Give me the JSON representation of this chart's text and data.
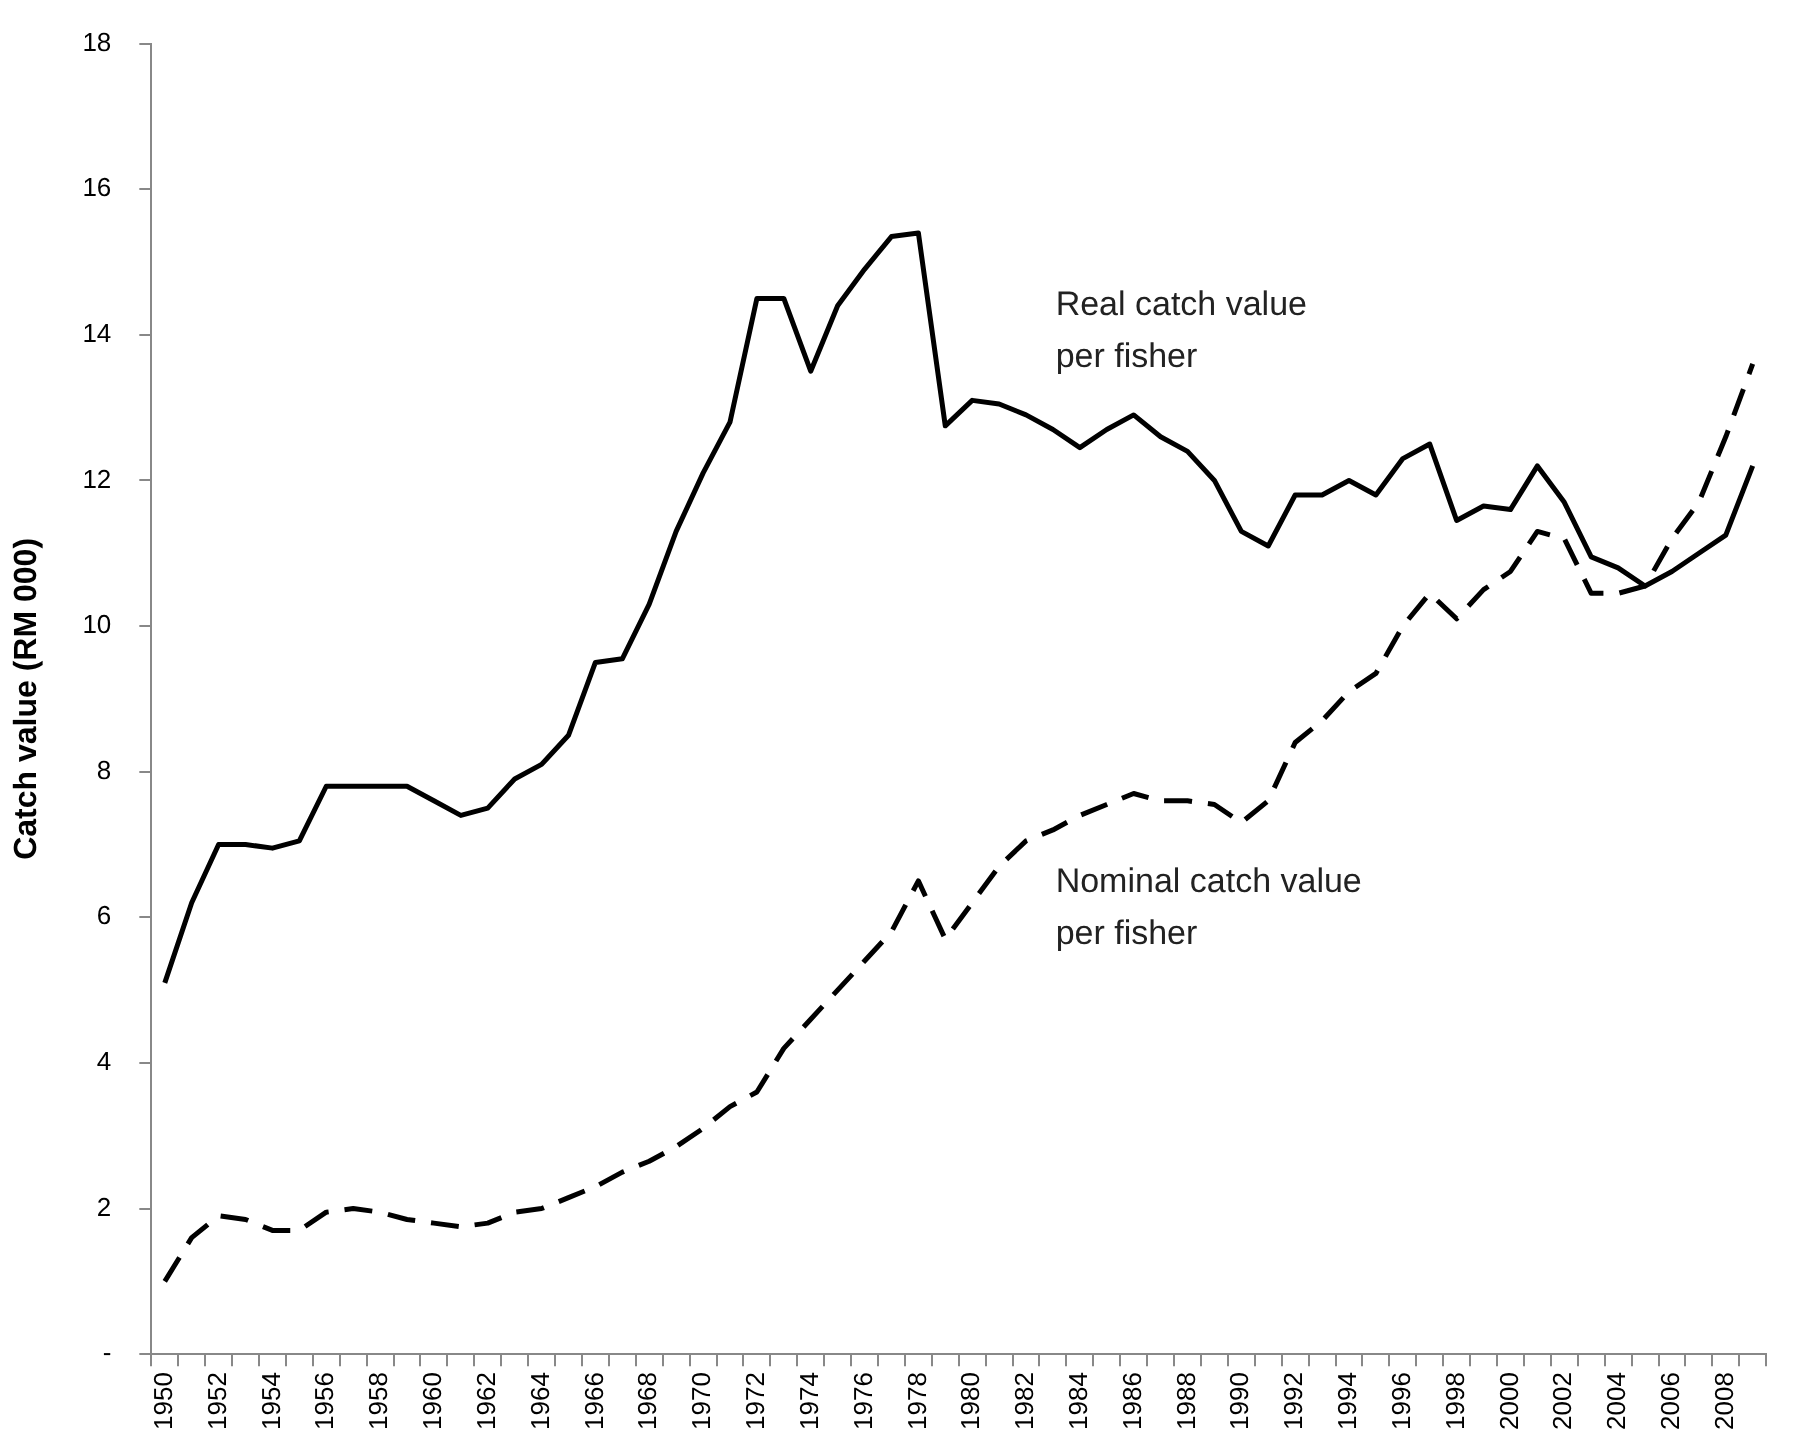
{
  "chart_data": {
    "type": "line",
    "ylabel": "Catch value (RM 000)",
    "categories": [
      "1950",
      null,
      "1952",
      null,
      "1954",
      null,
      "1956",
      null,
      "1958",
      null,
      "1960",
      null,
      "1962",
      null,
      "1964",
      null,
      "1966",
      null,
      "1968",
      null,
      "1970",
      null,
      "1972",
      null,
      "1974",
      null,
      "1976",
      null,
      "1978",
      null,
      "1980",
      null,
      "1982",
      null,
      "1984",
      null,
      "1986",
      null,
      "1988",
      null,
      "1990",
      null,
      "1992",
      null,
      "1994",
      null,
      "1996",
      null,
      "1998",
      null,
      "2000",
      null,
      "2002",
      null,
      "2004",
      null,
      "2006",
      null,
      "2008",
      null
    ],
    "series": [
      {
        "name": "Real catch value per fisher",
        "color": "#000000",
        "line_style": "solid",
        "values": [
          5.1,
          6.2,
          7.0,
          7.0,
          6.95,
          7.05,
          7.8,
          7.8,
          7.8,
          7.8,
          7.6,
          7.4,
          7.5,
          7.9,
          8.1,
          8.5,
          9.5,
          9.55,
          10.3,
          11.3,
          12.1,
          12.8,
          14.5,
          14.5,
          13.5,
          14.4,
          14.9,
          15.35,
          15.4,
          12.75,
          13.1,
          13.05,
          12.9,
          12.7,
          12.45,
          12.7,
          12.9,
          12.6,
          12.4,
          12.0,
          11.3,
          11.1,
          11.8,
          11.8,
          12.0,
          11.8,
          12.3,
          12.5,
          11.45,
          11.65,
          11.6,
          12.2,
          11.7,
          10.95,
          10.8,
          10.55,
          10.75,
          11.0,
          11.25,
          12.2
        ]
      },
      {
        "name": "Nominal catch value per fisher",
        "color": "#000000",
        "line_style": "dashed",
        "values": [
          1.0,
          1.6,
          1.9,
          1.85,
          1.7,
          1.7,
          1.95,
          2.0,
          1.95,
          1.85,
          1.8,
          1.75,
          1.8,
          1.95,
          2.0,
          2.15,
          2.3,
          2.5,
          2.65,
          2.85,
          3.1,
          3.4,
          3.6,
          4.2,
          4.6,
          5.0,
          5.4,
          5.8,
          6.5,
          5.7,
          6.2,
          6.7,
          7.05,
          7.2,
          7.4,
          7.55,
          7.7,
          7.6,
          7.6,
          7.55,
          7.3,
          7.6,
          8.4,
          8.7,
          9.1,
          9.35,
          10.0,
          10.45,
          10.1,
          10.5,
          10.75,
          11.3,
          11.2,
          10.45,
          10.45,
          10.55,
          11.2,
          11.7,
          12.6,
          13.6
        ]
      }
    ],
    "ylim": [
      0,
      18
    ],
    "yticks": [
      {
        "value": 0,
        "label": "-"
      },
      2,
      4,
      6,
      8,
      10,
      12,
      14,
      16,
      18
    ],
    "grid": false,
    "legend": false,
    "marker": "none"
  }
}
